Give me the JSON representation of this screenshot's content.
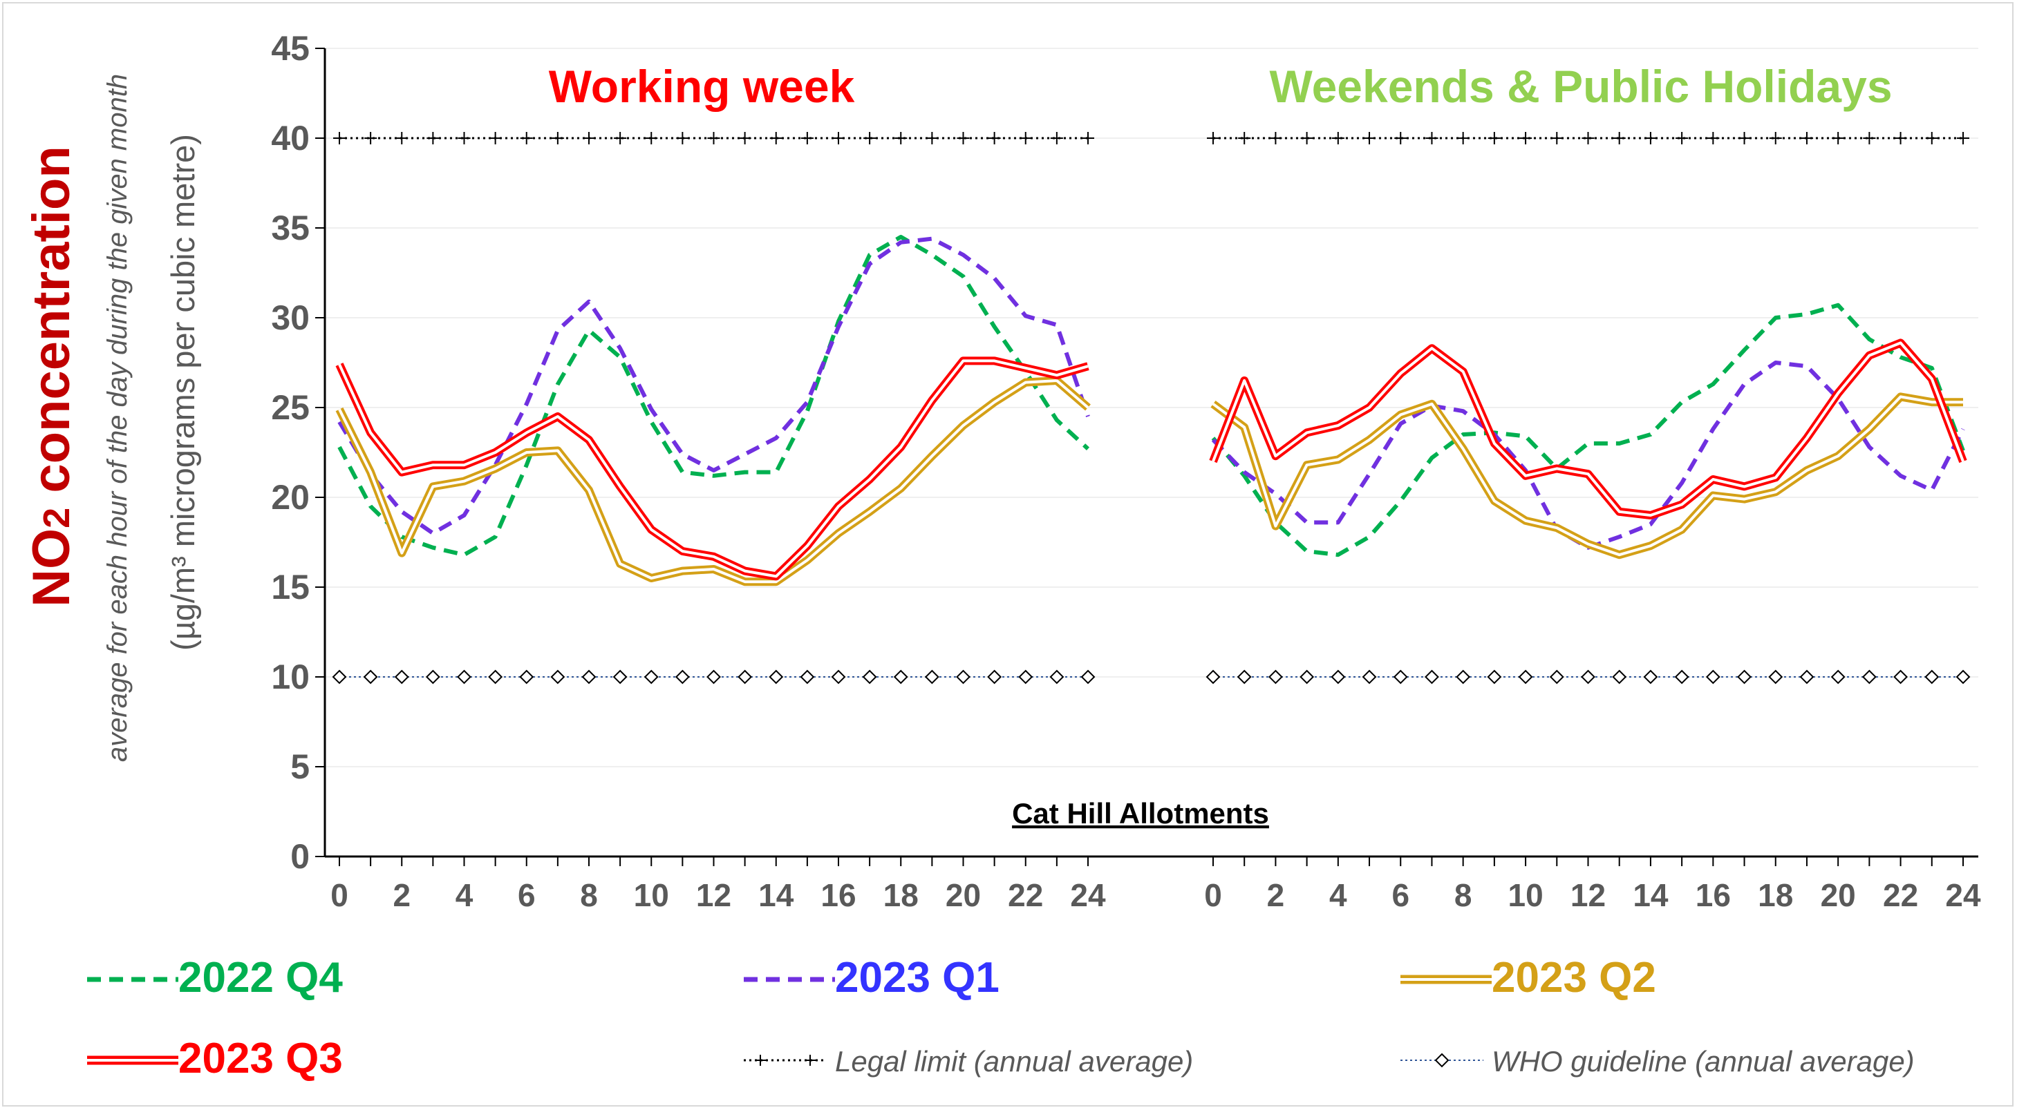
{
  "chart_data": {
    "type": "line",
    "location_label": "Cat Hill Allotments",
    "y_title": {
      "main": "NO",
      "main_sub": "2",
      "main_rest": " concentration",
      "sub1": "average for each hour of the day during the given month",
      "sub2": "(µg/m³ micrograms per cubic metre)"
    },
    "ylim": [
      0,
      45
    ],
    "yticks": [
      "0",
      "5",
      "10",
      "15",
      "20",
      "25",
      "30",
      "35",
      "40",
      "45"
    ],
    "xticks": [
      "0",
      "2",
      "4",
      "6",
      "8",
      "10",
      "12",
      "14",
      "16",
      "18",
      "20",
      "22",
      "24"
    ],
    "grid": true,
    "panels": [
      {
        "title": "Working week",
        "title_color": "#ff0000"
      },
      {
        "title": "Weekends & Public Holidays",
        "title_color": "#92d050"
      }
    ],
    "x": [
      0,
      1,
      2,
      3,
      4,
      5,
      6,
      7,
      8,
      9,
      10,
      11,
      12,
      13,
      14,
      15,
      16,
      17,
      18,
      19,
      20,
      21,
      22,
      23,
      24
    ],
    "series": [
      {
        "name": "2022 Q4",
        "color": "#00b050",
        "style": "dashed",
        "working": [
          22.8,
          19.5,
          17.8,
          17.2,
          16.8,
          17.8,
          21.8,
          26.3,
          29.3,
          27.8,
          24.2,
          21.4,
          21.2,
          21.4,
          21.4,
          24.8,
          29.8,
          33.5,
          34.5,
          33.5,
          32.3,
          29.5,
          27.0,
          24.3,
          22.7
        ],
        "weekend": [
          23.3,
          21.2,
          18.6,
          17.0,
          16.8,
          17.8,
          19.8,
          22.2,
          23.5,
          23.6,
          23.4,
          21.6,
          23.0,
          23.0,
          23.5,
          25.3,
          26.3,
          28.2,
          30.0,
          30.2,
          30.7,
          28.8,
          27.8,
          27.2,
          22.6
        ]
      },
      {
        "name": "2023 Q1",
        "color": "#7030e0",
        "style": "dashed",
        "working": [
          24.2,
          21.3,
          19.2,
          18.0,
          19.0,
          21.8,
          25.2,
          29.3,
          30.9,
          28.3,
          24.9,
          22.4,
          21.5,
          22.4,
          23.3,
          25.3,
          29.5,
          33.0,
          34.2,
          34.4,
          33.5,
          32.2,
          30.1,
          29.6,
          24.5
        ],
        "weekend": [
          23.2,
          21.4,
          20.2,
          18.6,
          18.6,
          21.3,
          24.1,
          25.1,
          24.8,
          23.5,
          21.5,
          18.2,
          17.2,
          17.8,
          18.5,
          20.8,
          23.8,
          26.3,
          27.5,
          27.3,
          25.5,
          22.8,
          21.2,
          20.4,
          23.8
        ]
      },
      {
        "name": "2023 Q2",
        "color": "#d4a017",
        "style": "double",
        "working": [
          24.9,
          21.4,
          16.9,
          20.6,
          20.9,
          21.6,
          22.5,
          22.6,
          20.4,
          16.3,
          15.5,
          15.9,
          16.0,
          15.3,
          15.3,
          16.5,
          18.0,
          19.2,
          20.5,
          22.3,
          24.0,
          25.3,
          26.4,
          26.5,
          25.0
        ],
        "weekend": [
          25.2,
          23.9,
          18.4,
          21.8,
          22.1,
          23.2,
          24.6,
          25.2,
          22.7,
          19.8,
          18.7,
          18.3,
          17.4,
          16.8,
          17.3,
          18.2,
          20.1,
          19.9,
          20.3,
          21.5,
          22.3,
          23.8,
          25.6,
          25.3,
          25.3
        ]
      },
      {
        "name": "2023 Q3",
        "color": "#ff0000",
        "style": "double",
        "working": [
          27.4,
          23.6,
          21.4,
          21.8,
          21.8,
          22.5,
          23.6,
          24.5,
          23.2,
          20.6,
          18.2,
          17.0,
          16.7,
          15.9,
          15.6,
          17.3,
          19.5,
          21.0,
          22.8,
          25.4,
          27.6,
          27.6,
          27.2,
          26.8,
          27.3
        ],
        "weekend": [
          22.0,
          26.5,
          22.3,
          23.6,
          24.0,
          25.0,
          26.9,
          28.3,
          27.0,
          23.0,
          21.2,
          21.6,
          21.3,
          19.2,
          19.0,
          19.6,
          21.0,
          20.6,
          21.1,
          23.3,
          25.8,
          27.9,
          28.6,
          26.6,
          22.0
        ]
      }
    ],
    "reference_lines": [
      {
        "name": "Legal limit (annual average)",
        "value": 40,
        "color": "#000000",
        "marker": "plus"
      },
      {
        "name": "WHO guideline (annual average)",
        "value": 10,
        "color": "#2f5597",
        "marker": "diamond"
      }
    ]
  }
}
